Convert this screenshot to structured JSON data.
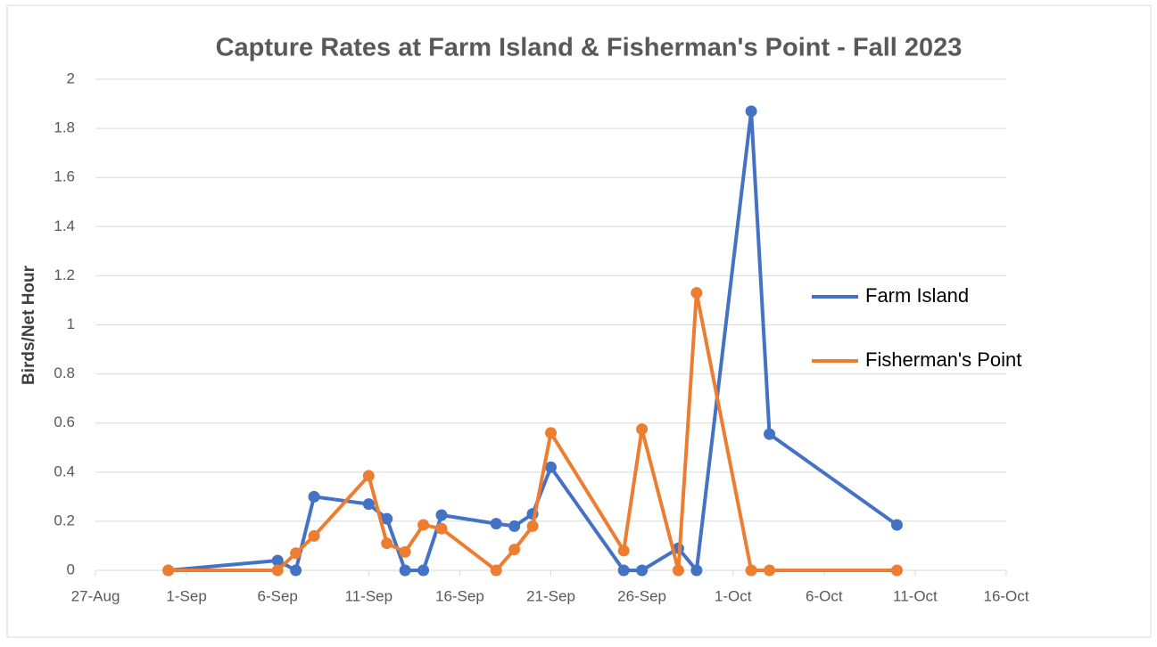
{
  "chart_data": {
    "type": "line",
    "title": "Capture Rates at Farm Island & Fisherman's Point - Fall 2023",
    "y_label": "Birds/Net Hour",
    "x": [
      "31-Aug",
      "6-Sep",
      "7-Sep",
      "8-Sep",
      "11-Sep",
      "12-Sep",
      "13-Sep",
      "14-Sep",
      "15-Sep",
      "18-Sep",
      "19-Sep",
      "20-Sep",
      "21-Sep",
      "25-Sep",
      "26-Sep",
      "28-Sep",
      "29-Sep",
      "2-Oct",
      "3-Oct",
      "10-Oct"
    ],
    "series": [
      {
        "name": "Farm Island",
        "color": "#4472c4",
        "values": [
          0,
          0.04,
          0,
          0.3,
          0.27,
          0.21,
          0,
          0,
          0.225,
          0.19,
          0.18,
          0.23,
          0.42,
          0,
          0,
          0.09,
          0,
          1.87,
          0.555,
          0.185
        ]
      },
      {
        "name": "Fisherman's Point",
        "color": "#ed7d31",
        "values": [
          0,
          0,
          0.07,
          0.14,
          0.385,
          0.11,
          0.075,
          0.185,
          0.17,
          0,
          0.085,
          0.18,
          0.56,
          0.08,
          0.575,
          0,
          1.13,
          0,
          0,
          0
        ]
      }
    ],
    "xlim": [
      "27-Aug",
      "16-Oct"
    ],
    "xticks": [
      "27-Aug",
      "1-Sep",
      "6-Sep",
      "11-Sep",
      "16-Sep",
      "21-Sep",
      "26-Sep",
      "1-Oct",
      "6-Oct",
      "11-Oct",
      "16-Oct"
    ],
    "ylim": [
      0,
      2
    ],
    "yticks": [
      0,
      0.2,
      0.4,
      0.6,
      0.8,
      1,
      1.2,
      1.4,
      1.6,
      1.8,
      2
    ],
    "grid": true,
    "legend": "right"
  }
}
